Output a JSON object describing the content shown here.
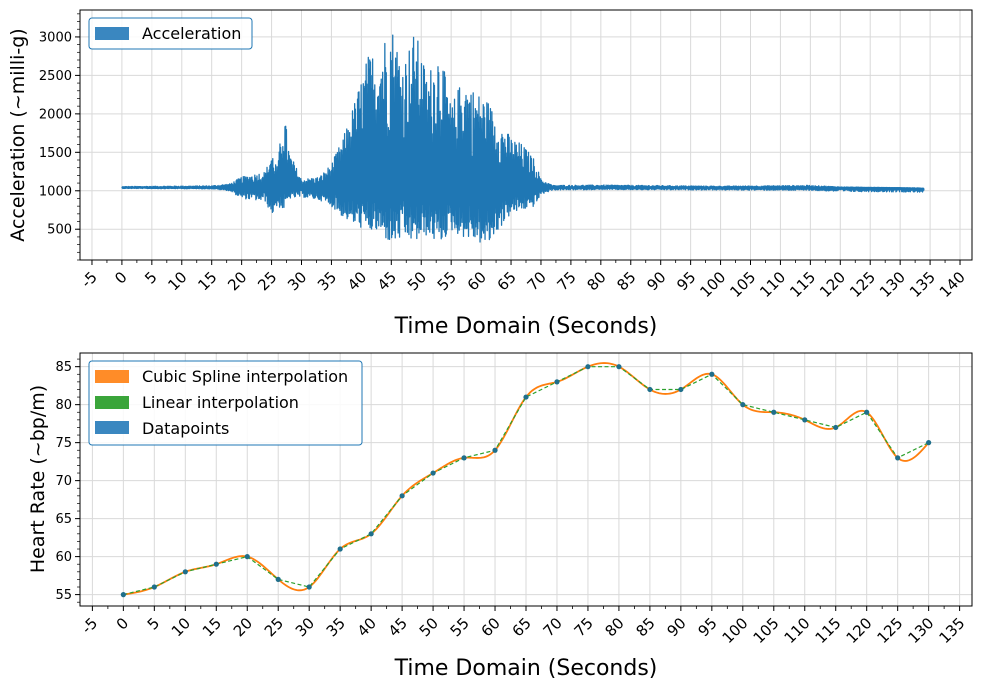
{
  "chart_data": [
    {
      "type": "line",
      "title": "",
      "xlabel": "Time Domain (Seconds)",
      "ylabel": "Acceleration (~milli-g)",
      "xlim": [
        -7,
        142
      ],
      "ylim": [
        100,
        3350
      ],
      "x_ticks": [
        "-5",
        "0",
        "5",
        "10",
        "15",
        "20",
        "25",
        "30",
        "35",
        "40",
        "45",
        "50",
        "55",
        "60",
        "65",
        "70",
        "75",
        "80",
        "85",
        "90",
        "95",
        "100",
        "105",
        "110",
        "115",
        "120",
        "125",
        "130",
        "135",
        "140"
      ],
      "y_ticks": [
        "500",
        "1000",
        "1500",
        "2000",
        "2500",
        "3000"
      ],
      "grid": true,
      "legend": "top-left",
      "colors": {
        "signal": "#1f77b4"
      },
      "series": [
        {
          "name": "Acceleration",
          "baseline": 1040,
          "envelope_x": [
            0,
            15,
            18,
            20,
            24,
            25,
            26,
            27,
            28,
            30,
            33,
            35,
            37,
            39,
            41,
            43,
            45,
            47,
            49,
            51,
            53,
            55,
            57,
            59,
            61,
            63,
            65,
            67,
            69,
            70,
            72,
            80,
            100,
            115,
            120,
            130,
            134
          ],
          "envelope_upper": [
            1055,
            1065,
            1090,
            1180,
            1250,
            1520,
            1300,
            2100,
            1500,
            1150,
            1180,
            1350,
            1700,
            2200,
            2750,
            2900,
            3200,
            2700,
            3100,
            2500,
            2900,
            2100,
            2500,
            2300,
            2200,
            1900,
            1700,
            1600,
            1400,
            1150,
            1070,
            1075,
            1060,
            1070,
            1050,
            1040,
            1030
          ],
          "envelope_lower": [
            1030,
            1025,
            1000,
            900,
            860,
            680,
            800,
            750,
            900,
            920,
            880,
            800,
            650,
            550,
            480,
            450,
            300,
            380,
            330,
            420,
            300,
            480,
            400,
            350,
            260,
            500,
            700,
            750,
            800,
            950,
            1010,
            1015,
            1010,
            1005,
            990,
            985,
            980
          ]
        }
      ]
    },
    {
      "type": "line",
      "title": "",
      "xlabel": "Time Domain (Seconds)",
      "ylabel": "Heart Rate (~bp/m)",
      "xlim": [
        -7,
        137
      ],
      "ylim": [
        53.5,
        86.8
      ],
      "x_ticks": [
        "-5",
        "0",
        "5",
        "10",
        "15",
        "20",
        "25",
        "30",
        "35",
        "40",
        "45",
        "50",
        "55",
        "60",
        "65",
        "70",
        "75",
        "80",
        "85",
        "90",
        "95",
        "100",
        "105",
        "110",
        "115",
        "120",
        "125",
        "130",
        "135"
      ],
      "y_ticks": [
        "55",
        "60",
        "65",
        "70",
        "75",
        "80",
        "85"
      ],
      "grid": true,
      "legend": "top-left",
      "x": [
        0,
        5,
        10,
        15,
        20,
        25,
        30,
        35,
        40,
        45,
        50,
        55,
        60,
        65,
        70,
        75,
        80,
        85,
        90,
        95,
        100,
        105,
        110,
        115,
        120,
        125,
        130
      ],
      "series": [
        {
          "name": "Cubic Spline interpolation",
          "color": "#ff7f0e",
          "style": "solid"
        },
        {
          "name": "Linear interpolation",
          "color": "#2ca02c",
          "style": "dashed"
        },
        {
          "name": "Datapoints",
          "color": "#1f77b4",
          "style": "markers",
          "values": [
            55,
            56,
            58,
            59,
            60,
            57,
            56,
            61,
            63,
            68,
            71,
            73,
            74,
            81,
            83,
            85,
            85,
            82,
            82,
            84,
            80,
            79,
            78,
            77,
            79,
            73,
            75
          ]
        }
      ]
    }
  ]
}
